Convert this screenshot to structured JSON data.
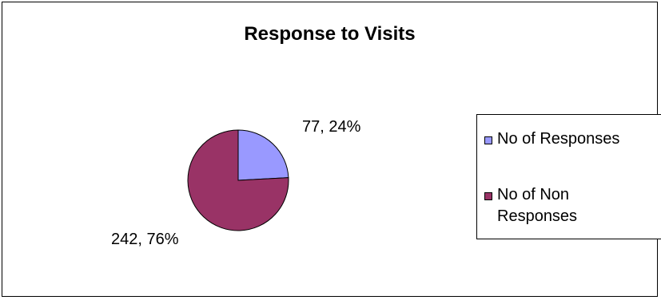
{
  "chart_data": {
    "type": "pie",
    "title": "Response to Visits",
    "categories": [
      "No of Responses",
      "No of Non Responses"
    ],
    "values": [
      77,
      242
    ],
    "percentages": [
      24,
      76
    ],
    "data_labels": [
      "77, 24%",
      "242, 76%"
    ],
    "colors": [
      "#9999FF",
      "#993366"
    ],
    "legend_position": "right",
    "legend": {
      "entries": [
        "No of Responses",
        "No of Non\nResponses"
      ]
    }
  }
}
